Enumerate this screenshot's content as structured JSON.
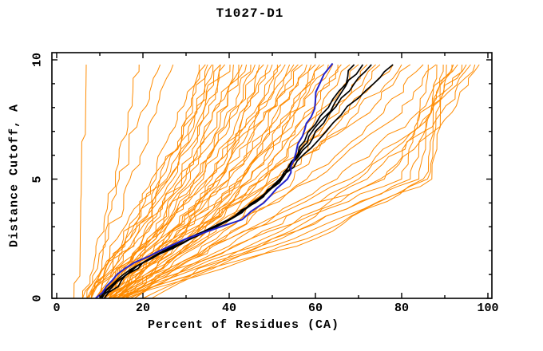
{
  "figure": {
    "title": "T1027-D1",
    "background": "#ffffff"
  },
  "chart_data": {
    "type": "line",
    "title": "T1027-D1",
    "xlabel": "Percent of Residues (CA)",
    "ylabel": "Distance Cutoff, A",
    "xlim": [
      0,
      100
    ],
    "ylim": [
      0,
      10
    ],
    "x_ticks": [
      0,
      20,
      40,
      60,
      80,
      100
    ],
    "y_ticks": [
      0,
      5,
      10
    ],
    "x_minor_ticks": [
      10,
      30,
      50,
      70,
      90
    ],
    "y_minor_ticks": [
      1,
      2,
      3,
      4,
      6,
      7,
      8,
      9
    ],
    "grid": false,
    "legend": "none",
    "frame": "box-with-inward-ticks",
    "colors": {
      "other_models": "#ff8b00",
      "highlighted_models": "#000000",
      "selected_model": "#2222cc",
      "axis": "#000000"
    },
    "description": "Cumulative curves: percent of CA residues (x) fitting under each distance cutoff in Angstroms (y) for many predicted models of target T1027-D1. Orange = all models, black = highlighted models, blue = selected model.",
    "anchor_y": [
      0,
      2.5,
      5,
      7.5,
      9.8
    ],
    "orange_curves_x": [
      [
        4,
        4.6,
        5.2,
        5.6,
        6
      ],
      [
        7,
        11,
        14.5,
        19,
        24
      ],
      [
        6,
        9.5,
        13,
        16,
        18.5
      ],
      [
        7.5,
        12,
        17,
        22,
        27
      ],
      [
        7,
        14,
        22,
        28,
        33
      ],
      [
        8,
        16,
        24,
        30,
        34.5
      ],
      [
        9,
        17,
        25.5,
        31.5,
        36
      ],
      [
        8,
        15.5,
        23,
        31,
        38
      ],
      [
        6,
        16,
        24,
        30,
        35
      ],
      [
        9,
        18,
        26,
        32,
        36
      ],
      [
        7,
        17,
        26,
        33,
        38
      ],
      [
        10,
        20,
        28,
        34,
        39
      ],
      [
        8,
        18,
        27,
        34,
        40
      ],
      [
        11,
        21,
        30,
        36,
        41
      ],
      [
        9,
        20,
        29,
        36,
        42
      ],
      [
        12,
        22,
        31,
        38,
        43
      ],
      [
        8,
        19,
        29,
        37,
        44
      ],
      [
        10,
        22,
        32,
        39,
        45
      ],
      [
        13,
        24,
        33,
        40,
        46
      ],
      [
        9,
        21,
        32,
        40,
        47
      ],
      [
        11,
        23,
        34,
        42,
        48
      ],
      [
        14,
        26,
        36,
        43,
        49
      ],
      [
        10,
        23,
        35,
        43,
        50
      ],
      [
        12,
        25,
        37,
        45,
        51
      ],
      [
        9,
        22,
        35,
        44,
        52
      ],
      [
        13,
        27,
        38,
        46,
        53
      ],
      [
        11,
        25,
        37,
        46,
        54
      ],
      [
        14,
        28,
        40,
        48,
        55
      ],
      [
        10,
        24,
        38,
        48,
        56
      ],
      [
        12,
        27,
        40,
        49,
        57
      ],
      [
        15,
        30,
        42,
        51,
        58
      ],
      [
        11,
        26,
        40,
        50,
        59
      ],
      [
        13,
        29,
        43,
        52,
        60
      ],
      [
        16,
        32,
        45,
        54,
        61
      ],
      [
        12,
        28,
        43,
        53,
        62
      ],
      [
        14,
        31,
        45,
        55,
        63
      ],
      [
        10,
        27,
        43,
        54,
        64
      ],
      [
        15,
        33,
        47,
        57,
        65
      ],
      [
        12,
        30,
        46,
        57,
        66
      ],
      [
        16,
        35,
        49,
        59,
        68
      ],
      [
        13,
        32,
        48,
        60,
        70
      ],
      [
        17,
        37,
        52,
        63,
        72
      ],
      [
        14,
        34,
        51,
        63,
        74
      ],
      [
        18,
        39,
        55,
        66,
        75
      ],
      [
        12,
        30,
        48,
        65,
        78
      ],
      [
        14,
        33,
        52,
        68,
        80
      ],
      [
        10,
        28,
        50,
        70,
        82
      ],
      [
        16,
        38,
        58,
        74,
        85
      ],
      [
        13,
        35,
        60,
        78,
        88
      ],
      [
        18,
        42,
        65,
        82,
        92
      ],
      [
        15,
        40,
        68,
        85,
        95
      ],
      [
        20,
        48,
        72,
        88,
        97
      ],
      [
        17,
        45,
        70,
        86,
        96
      ],
      [
        22,
        50,
        75,
        90,
        98
      ],
      [
        14,
        55,
        86,
        87,
        90
      ],
      [
        13,
        50,
        84,
        85.5,
        88
      ],
      [
        15,
        58,
        87,
        88,
        91
      ],
      [
        12,
        45,
        80,
        83,
        86
      ],
      [
        16,
        60,
        85,
        86.5,
        89
      ],
      [
        11,
        40,
        76,
        84,
        93
      ],
      [
        13,
        52,
        82,
        86,
        94
      ]
    ],
    "black_curves": [
      [
        [
          10,
          0
        ],
        [
          13,
          0.6
        ],
        [
          17,
          1.2
        ],
        [
          23,
          1.8
        ],
        [
          30,
          2.4
        ],
        [
          37,
          3
        ],
        [
          43,
          3.6
        ],
        [
          48,
          4.3
        ],
        [
          52,
          5
        ],
        [
          55,
          5.8
        ],
        [
          57.5,
          6.6
        ],
        [
          60,
          7.3
        ],
        [
          63,
          8
        ],
        [
          65.5,
          8.7
        ],
        [
          67.5,
          9.3
        ],
        [
          69,
          9.8
        ]
      ],
      [
        [
          10.5,
          0
        ],
        [
          13.5,
          0.65
        ],
        [
          18,
          1.3
        ],
        [
          24,
          1.9
        ],
        [
          31,
          2.5
        ],
        [
          38,
          3.1
        ],
        [
          44,
          3.8
        ],
        [
          49,
          4.5
        ],
        [
          53,
          5.2
        ],
        [
          56,
          6
        ],
        [
          58.5,
          6.8
        ],
        [
          61.5,
          7.5
        ],
        [
          64.5,
          8.2
        ],
        [
          67,
          8.9
        ],
        [
          69.5,
          9.4
        ],
        [
          71,
          9.8
        ]
      ],
      [
        [
          10,
          0
        ],
        [
          14,
          0.7
        ],
        [
          19,
          1.4
        ],
        [
          25,
          2
        ],
        [
          32,
          2.6
        ],
        [
          39,
          3.2
        ],
        [
          45,
          3.9
        ],
        [
          50,
          4.7
        ],
        [
          54,
          5.4
        ],
        [
          57,
          6.2
        ],
        [
          60,
          7
        ],
        [
          63,
          7.7
        ],
        [
          66,
          8.4
        ],
        [
          69,
          9
        ],
        [
          71.5,
          9.5
        ],
        [
          73,
          9.8
        ]
      ],
      [
        [
          11,
          0
        ],
        [
          15,
          0.75
        ],
        [
          20,
          1.5
        ],
        [
          27,
          2.2
        ],
        [
          34,
          2.8
        ],
        [
          41,
          3.4
        ],
        [
          46,
          4
        ],
        [
          51,
          4.8
        ],
        [
          55,
          5.5
        ],
        [
          59,
          6.3
        ],
        [
          62.5,
          7
        ],
        [
          66,
          7.7
        ],
        [
          70,
          8.4
        ],
        [
          73.5,
          9
        ],
        [
          76,
          9.5
        ],
        [
          78,
          9.8
        ]
      ]
    ],
    "blue_curve": [
      [
        9,
        0
      ],
      [
        11.5,
        0.5
      ],
      [
        14,
        1
      ],
      [
        18,
        1.5
      ],
      [
        24,
        2
      ],
      [
        30,
        2.5
      ],
      [
        38,
        3
      ],
      [
        43,
        3.3
      ],
      [
        48,
        4
      ],
      [
        51,
        4.6
      ],
      [
        53.5,
        5
      ],
      [
        55,
        5.8
      ],
      [
        57,
        6.8
      ],
      [
        59,
        7.6
      ],
      [
        60,
        8.3
      ],
      [
        61,
        9
      ],
      [
        62,
        9.4
      ],
      [
        64,
        9.85
      ]
    ]
  }
}
